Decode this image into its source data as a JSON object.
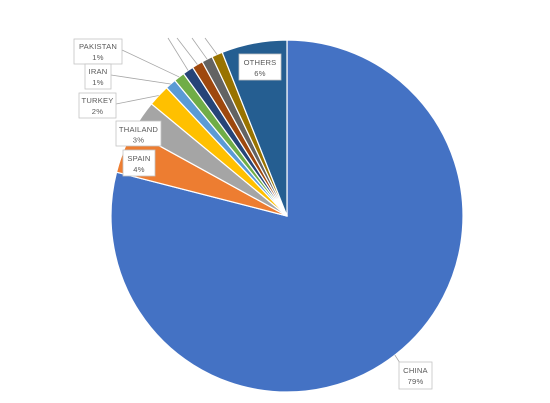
{
  "chart_data": {
    "type": "pie",
    "categories": [
      "CHINA",
      "SPAIN",
      "THAILAND",
      "TURKEY",
      "IRAN",
      "PAKISTAN",
      "",
      "",
      "",
      "",
      "OTHERS"
    ],
    "values": [
      79,
      4,
      3,
      2,
      1,
      1,
      1,
      1,
      1,
      1,
      6
    ],
    "value_labels": [
      "79%",
      "4%",
      "3%",
      "2%",
      "1%",
      "1%",
      "",
      "",
      "",
      "",
      "6%"
    ],
    "colors": [
      "#4472C4",
      "#ED7D31",
      "#A5A5A5",
      "#FFC000",
      "#5B9BD5",
      "#70AD47",
      "#264478",
      "#9E480E",
      "#636363",
      "#997300",
      "#255E91"
    ],
    "legend": "none"
  }
}
